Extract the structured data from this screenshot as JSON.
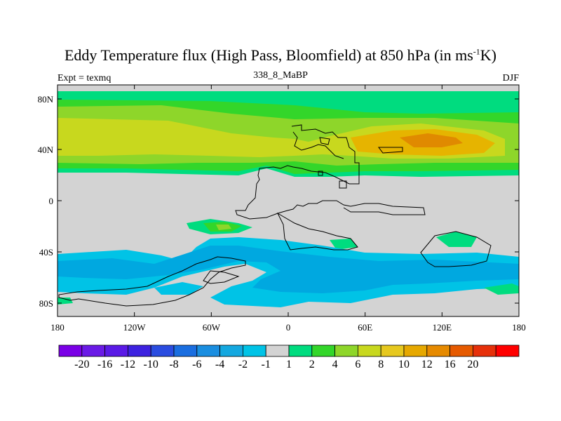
{
  "title_main": "Eddy Temperature flux (High Pass, Bloomfield) at 850 hPa (in ms",
  "title_sup": "-1",
  "title_end": "K)",
  "subtitle": "338_8_MaBP",
  "left_label": "Expt = texmq",
  "right_label": "DJF",
  "colors": {
    "land_gray": "#d3d3d3",
    "c_pos1": "#00dc7f",
    "c_pos2": "#33d62a",
    "c_pos4": "#8ed62a",
    "c_pos6": "#c8d81e",
    "c_pos8": "#e6b400",
    "c_pos10": "#e08a00",
    "c_neg1": "#00c3e6",
    "c_neg2": "#00a8e0"
  },
  "y_ticks": [
    "80N",
    "40N",
    "0",
    "40S",
    "80S"
  ],
  "x_ticks": [
    "180",
    "120W",
    "60W",
    "0",
    "60E",
    "120E",
    "180"
  ],
  "colorbar": {
    "colors": [
      "#7a00e6",
      "#6a1ae6",
      "#5a1ae6",
      "#3d22e0",
      "#2a4ce0",
      "#1a6ee0",
      "#1a8ee0",
      "#14a8e0",
      "#00c3e6",
      "#d3d3d3",
      "#00dc7f",
      "#33d62a",
      "#8ed62a",
      "#c8d81e",
      "#e6c81e",
      "#e6a800",
      "#e68a00",
      "#e65a00",
      "#e6300a",
      "#ff0000"
    ],
    "labels": [
      "-20",
      "-16",
      "-12",
      "-10",
      "-8",
      "-6",
      "-4",
      "-2",
      "-1",
      "1",
      "2",
      "4",
      "6",
      "8",
      "10",
      "12",
      "16",
      "20"
    ]
  }
}
